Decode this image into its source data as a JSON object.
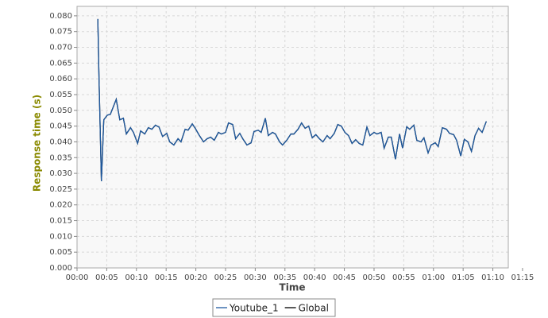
{
  "chart_data": {
    "type": "line",
    "x_label": "Time",
    "y_label": "Response time (s)",
    "xlim": [
      0,
      72.6
    ],
    "ylim": [
      0,
      0.083
    ],
    "grid": true,
    "legend_position": "bottom",
    "xticks": [
      {
        "value": 0,
        "label": "00:00"
      },
      {
        "value": 5,
        "label": "00:05"
      },
      {
        "value": 10,
        "label": "00:10"
      },
      {
        "value": 15,
        "label": "00:15"
      },
      {
        "value": 20,
        "label": "00:20"
      },
      {
        "value": 25,
        "label": "00:25"
      },
      {
        "value": 30,
        "label": "00:30"
      },
      {
        "value": 35,
        "label": "00:35"
      },
      {
        "value": 40,
        "label": "00:40"
      },
      {
        "value": 45,
        "label": "00:45"
      },
      {
        "value": 50,
        "label": "00:50"
      },
      {
        "value": 55,
        "label": "00:55"
      },
      {
        "value": 60,
        "label": "01:00"
      },
      {
        "value": 65,
        "label": "01:05"
      },
      {
        "value": 70,
        "label": "01:10"
      },
      {
        "value": 75,
        "label": "01:15"
      }
    ],
    "yticks": [
      {
        "value": 0,
        "label": "0.000"
      },
      {
        "value": 0.005,
        "label": "0.005"
      },
      {
        "value": 0.01,
        "label": "0.010"
      },
      {
        "value": 0.015,
        "label": "0.015"
      },
      {
        "value": 0.02,
        "label": "0.020"
      },
      {
        "value": 0.025,
        "label": "0.025"
      },
      {
        "value": 0.03,
        "label": "0.030"
      },
      {
        "value": 0.035,
        "label": "0.035"
      },
      {
        "value": 0.04,
        "label": "0.040"
      },
      {
        "value": 0.045,
        "label": "0.045"
      },
      {
        "value": 0.05,
        "label": "0.050"
      },
      {
        "value": 0.055,
        "label": "0.055"
      },
      {
        "value": 0.06,
        "label": "0.060"
      },
      {
        "value": 0.065,
        "label": "0.065"
      },
      {
        "value": 0.07,
        "label": "0.070"
      },
      {
        "value": 0.075,
        "label": "0.075"
      },
      {
        "value": 0.08,
        "label": "0.080"
      }
    ],
    "x": [
      3.5,
      3.7,
      4.1,
      4.5,
      5.1,
      5.6,
      6.6,
      7.2,
      7.8,
      8.3,
      9.0,
      9.5,
      10.2,
      10.7,
      11.4,
      12.0,
      12.6,
      13.2,
      13.8,
      14.4,
      15.1,
      15.6,
      16.3,
      17.0,
      17.5,
      18.2,
      18.7,
      19.4,
      19.9,
      20.6,
      21.3,
      21.9,
      22.5,
      23.1,
      23.8,
      24.3,
      25.0,
      25.5,
      26.2,
      26.7,
      27.4,
      27.9,
      28.6,
      29.3,
      29.8,
      30.5,
      31.0,
      31.7,
      32.2,
      32.9,
      33.4,
      34.1,
      34.6,
      35.3,
      36.0,
      36.5,
      37.2,
      37.8,
      38.4,
      39.0,
      39.6,
      40.2,
      40.8,
      41.4,
      42.1,
      42.6,
      43.3,
      43.9,
      44.5,
      45.1,
      45.7,
      46.3,
      46.9,
      47.5,
      48.1,
      48.8,
      49.3,
      50.0,
      50.5,
      51.2,
      51.7,
      52.4,
      52.9,
      53.6,
      54.3,
      54.8,
      55.5,
      56.0,
      56.7,
      57.2,
      57.9,
      58.4,
      59.1,
      59.6,
      60.3,
      60.8,
      61.5,
      62.2,
      62.7,
      63.4,
      63.9,
      64.6,
      65.2,
      65.8,
      66.4,
      67.0,
      67.6,
      68.2,
      68.9
    ],
    "series": [
      {
        "name": "Global",
        "color": "#000000",
        "values": [
          0.079,
          0.06,
          0.0275,
          0.047,
          0.0485,
          0.0487,
          0.0535,
          0.047,
          0.0475,
          0.0425,
          0.0445,
          0.043,
          0.0395,
          0.0435,
          0.0425,
          0.0445,
          0.044,
          0.0453,
          0.0447,
          0.0417,
          0.0427,
          0.04,
          0.039,
          0.041,
          0.04,
          0.044,
          0.0437,
          0.0457,
          0.0443,
          0.042,
          0.04,
          0.041,
          0.0415,
          0.0405,
          0.043,
          0.0425,
          0.043,
          0.046,
          0.0455,
          0.041,
          0.0427,
          0.041,
          0.039,
          0.0397,
          0.0433,
          0.0437,
          0.043,
          0.0475,
          0.042,
          0.043,
          0.0425,
          0.04,
          0.039,
          0.0405,
          0.0425,
          0.0425,
          0.044,
          0.046,
          0.0443,
          0.045,
          0.0413,
          0.0423,
          0.041,
          0.04,
          0.042,
          0.041,
          0.0427,
          0.0455,
          0.045,
          0.043,
          0.042,
          0.0395,
          0.0407,
          0.0395,
          0.039,
          0.0447,
          0.042,
          0.043,
          0.0425,
          0.043,
          0.038,
          0.0415,
          0.0415,
          0.0345,
          0.0425,
          0.038,
          0.0448,
          0.044,
          0.0453,
          0.0405,
          0.04,
          0.0413,
          0.0365,
          0.039,
          0.0397,
          0.0385,
          0.0445,
          0.044,
          0.0427,
          0.0423,
          0.0405,
          0.0355,
          0.0408,
          0.04,
          0.037,
          0.042,
          0.0443,
          0.043,
          0.0465
        ]
      },
      {
        "name": "Youtube_1",
        "color": "#1f5aa0",
        "values": [
          0.079,
          0.06,
          0.0275,
          0.047,
          0.0485,
          0.0487,
          0.0535,
          0.047,
          0.0475,
          0.0425,
          0.0445,
          0.043,
          0.0395,
          0.0435,
          0.0425,
          0.0445,
          0.044,
          0.0453,
          0.0447,
          0.0417,
          0.0427,
          0.04,
          0.039,
          0.041,
          0.04,
          0.044,
          0.0437,
          0.0457,
          0.0443,
          0.042,
          0.04,
          0.041,
          0.0415,
          0.0405,
          0.043,
          0.0425,
          0.043,
          0.046,
          0.0455,
          0.041,
          0.0427,
          0.041,
          0.039,
          0.0397,
          0.0433,
          0.0437,
          0.043,
          0.0475,
          0.042,
          0.043,
          0.0425,
          0.04,
          0.039,
          0.0405,
          0.0425,
          0.0425,
          0.044,
          0.046,
          0.0443,
          0.045,
          0.0413,
          0.0423,
          0.041,
          0.04,
          0.042,
          0.041,
          0.0427,
          0.0455,
          0.045,
          0.043,
          0.042,
          0.0395,
          0.0407,
          0.0395,
          0.039,
          0.0447,
          0.042,
          0.043,
          0.0425,
          0.043,
          0.038,
          0.0415,
          0.0415,
          0.0345,
          0.0425,
          0.038,
          0.0448,
          0.044,
          0.0453,
          0.0405,
          0.04,
          0.0413,
          0.0365,
          0.039,
          0.0397,
          0.0385,
          0.0445,
          0.044,
          0.0427,
          0.0423,
          0.0405,
          0.0355,
          0.0408,
          0.04,
          0.037,
          0.042,
          0.0443,
          0.043,
          0.0465
        ]
      }
    ]
  }
}
